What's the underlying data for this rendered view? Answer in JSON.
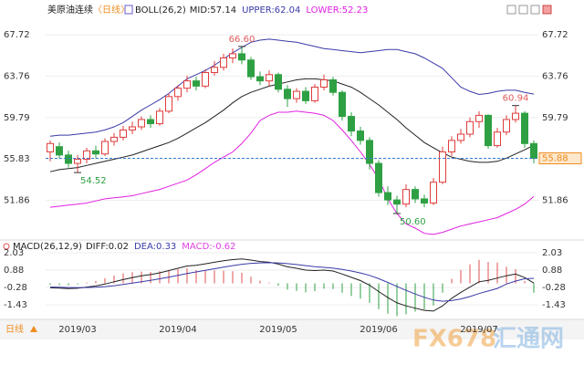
{
  "chart_data": [
    {
      "type": "candlestick",
      "title": "美原油连续",
      "period_label": "〈日线〉",
      "indicator": "BOLL(26,2)",
      "categories": [
        null,
        null,
        null,
        "2019/03",
        null,
        null,
        null,
        null,
        null,
        null,
        null,
        null,
        null,
        null,
        "2019/04",
        null,
        null,
        null,
        null,
        null,
        null,
        null,
        null,
        null,
        null,
        "2019/05",
        null,
        null,
        null,
        null,
        null,
        null,
        null,
        null,
        null,
        null,
        "2019/06",
        null,
        null,
        null,
        null,
        null,
        null,
        null,
        null,
        null,
        null,
        "2019/07",
        null,
        null,
        null,
        null,
        null,
        null
      ],
      "open": [
        56.5,
        57.0,
        56.2,
        55.4,
        55.8,
        56.6,
        56.3,
        57.5,
        57.9,
        58.6,
        58.9,
        59.6,
        59.2,
        60.4,
        61.8,
        62.6,
        63.3,
        62.8,
        64.1,
        64.6,
        65.5,
        65.9,
        65.3,
        63.7,
        63.3,
        63.9,
        62.5,
        61.6,
        62.3,
        61.4,
        62.7,
        63.4,
        62.2,
        59.9,
        58.5,
        57.6,
        55.4,
        52.6,
        51.9,
        51.5,
        52.9,
        52.0,
        51.6,
        53.6,
        56.5,
        57.6,
        58.2,
        59.4,
        60.0,
        57.1,
        58.4,
        59.6,
        60.2,
        57.3
      ],
      "high": [
        57.6,
        57.4,
        56.6,
        56.2,
        56.9,
        57.1,
        57.8,
        58.3,
        59.0,
        59.4,
        59.9,
        60.0,
        60.7,
        62.1,
        62.9,
        63.8,
        63.7,
        64.4,
        65.2,
        65.9,
        66.4,
        66.6,
        65.6,
        64.2,
        64.3,
        64.1,
        62.9,
        62.6,
        62.7,
        63.0,
        63.9,
        63.7,
        62.4,
        60.3,
        58.9,
        57.9,
        55.7,
        53.2,
        52.3,
        53.4,
        53.2,
        52.4,
        54.0,
        57.0,
        58.0,
        58.7,
        59.8,
        60.4,
        60.1,
        58.8,
        60.0,
        60.94,
        60.4,
        57.6
      ],
      "low": [
        55.6,
        55.9,
        55.0,
        54.52,
        55.4,
        55.9,
        56.1,
        57.1,
        57.6,
        58.2,
        58.6,
        58.8,
        59.0,
        60.2,
        61.4,
        62.2,
        62.4,
        62.6,
        63.8,
        64.3,
        65.0,
        64.9,
        63.4,
        62.9,
        62.8,
        62.2,
        60.8,
        61.2,
        61.1,
        61.2,
        62.4,
        61.9,
        59.5,
        58.0,
        57.2,
        54.8,
        52.2,
        51.4,
        50.6,
        51.2,
        51.6,
        51.2,
        51.4,
        53.4,
        56.1,
        57.3,
        57.9,
        58.8,
        56.8,
        56.9,
        58.1,
        59.3,
        56.9,
        55.4
      ],
      "close": [
        57.3,
        56.2,
        55.4,
        55.8,
        56.6,
        56.3,
        57.5,
        57.9,
        58.6,
        58.9,
        59.6,
        59.2,
        60.4,
        61.8,
        62.6,
        63.3,
        62.8,
        64.1,
        64.6,
        65.5,
        65.9,
        65.3,
        63.7,
        63.3,
        63.9,
        62.5,
        61.6,
        62.3,
        61.4,
        62.7,
        63.4,
        62.2,
        59.9,
        58.5,
        57.6,
        55.4,
        52.6,
        51.9,
        51.5,
        52.9,
        52.0,
        51.6,
        53.6,
        56.5,
        57.6,
        58.2,
        59.4,
        60.0,
        57.1,
        58.4,
        59.6,
        60.2,
        57.3,
        55.88
      ],
      "high_value_labels": [
        null,
        null,
        null,
        null,
        null,
        null,
        null,
        null,
        null,
        null,
        null,
        null,
        null,
        null,
        null,
        null,
        null,
        null,
        null,
        null,
        null,
        "66.60",
        null,
        null,
        null,
        null,
        null,
        null,
        null,
        null,
        null,
        null,
        null,
        null,
        null,
        null,
        null,
        null,
        null,
        null,
        null,
        null,
        null,
        null,
        null,
        null,
        null,
        null,
        null,
        null,
        null,
        "60.94",
        null,
        null
      ],
      "low_value_labels": [
        null,
        null,
        null,
        "54.52",
        null,
        null,
        null,
        null,
        null,
        null,
        null,
        null,
        null,
        null,
        null,
        null,
        null,
        null,
        null,
        null,
        null,
        null,
        null,
        null,
        null,
        null,
        null,
        null,
        null,
        null,
        null,
        null,
        null,
        null,
        null,
        null,
        null,
        null,
        "50.60",
        null,
        null,
        null,
        null,
        null,
        null,
        null,
        null,
        null,
        null,
        null,
        null,
        null,
        null,
        null
      ],
      "up_color": "#e03c3c",
      "down_color": "#2ea043",
      "label_high_color": "#e05a5a",
      "label_low_color": "#2ea043",
      "series": [
        {
          "name": "MID:57.14",
          "color": "#222222",
          "values": [
            54.6,
            54.8,
            54.9,
            55.0,
            55.2,
            55.4,
            55.6,
            55.8,
            56.0,
            56.2,
            56.5,
            56.8,
            57.1,
            57.4,
            57.8,
            58.3,
            58.8,
            59.3,
            59.9,
            60.5,
            61.2,
            61.8,
            62.2,
            62.5,
            62.8,
            63.0,
            63.2,
            63.4,
            63.5,
            63.5,
            63.4,
            63.3,
            63.0,
            62.7,
            62.2,
            61.6,
            61.0,
            60.3,
            59.6,
            58.8,
            58.1,
            57.4,
            56.9,
            56.4,
            56.0,
            55.8,
            55.6,
            55.5,
            55.5,
            55.6,
            55.9,
            56.3,
            56.7,
            57.14
          ]
        },
        {
          "name": "UPPER:62.04",
          "color": "#3a3aa8",
          "values": [
            58.0,
            58.1,
            58.1,
            58.2,
            58.3,
            58.4,
            58.6,
            58.9,
            59.3,
            59.9,
            60.5,
            61.0,
            61.5,
            62.1,
            62.8,
            63.5,
            63.9,
            64.3,
            64.8,
            65.4,
            66.0,
            66.5,
            67.0,
            67.2,
            67.3,
            67.2,
            67.1,
            67.0,
            66.8,
            66.6,
            66.4,
            66.3,
            66.2,
            66.1,
            66.0,
            66.1,
            66.2,
            66.3,
            66.3,
            66.1,
            65.9,
            65.5,
            65.0,
            64.5,
            63.6,
            62.7,
            62.3,
            62.0,
            62.1,
            62.3,
            62.4,
            62.4,
            62.2,
            62.04
          ]
        },
        {
          "name": "LOWER:52.23",
          "color": "#e020e0",
          "values": [
            51.2,
            51.3,
            51.4,
            51.5,
            51.6,
            51.8,
            52.0,
            52.1,
            52.2,
            52.3,
            52.5,
            52.7,
            52.9,
            53.2,
            53.5,
            53.8,
            54.3,
            54.9,
            55.5,
            56.0,
            56.5,
            57.3,
            58.3,
            59.5,
            60.0,
            60.3,
            60.3,
            60.4,
            60.3,
            60.2,
            60.0,
            59.5,
            58.6,
            57.6,
            56.5,
            55.3,
            53.9,
            52.0,
            50.6,
            49.6,
            49.2,
            48.7,
            48.6,
            48.8,
            49.1,
            49.4,
            49.6,
            49.8,
            50.0,
            50.2,
            50.6,
            51.0,
            51.5,
            52.23
          ]
        }
      ],
      "last_price": 55.88,
      "last_price_color": "#f08c1e",
      "last_line_color": "#3a7bd5",
      "ylim": [
        48.15,
        68.6
      ],
      "yticks": [
        51.86,
        55.83,
        59.79,
        63.76,
        67.72
      ],
      "grid": true
    },
    {
      "type": "macd",
      "indicator": "MACD(26,12,9)",
      "series": [
        {
          "name": "DIFF:0.02",
          "color": "#222222",
          "values": [
            -0.3,
            -0.32,
            -0.35,
            -0.33,
            -0.25,
            -0.18,
            -0.05,
            0.1,
            0.25,
            0.38,
            0.5,
            0.58,
            0.7,
            0.85,
            1.0,
            1.15,
            1.2,
            1.3,
            1.4,
            1.5,
            1.58,
            1.62,
            1.55,
            1.45,
            1.4,
            1.28,
            1.1,
            1.0,
            0.88,
            0.85,
            0.88,
            0.82,
            0.62,
            0.4,
            0.18,
            -0.12,
            -0.55,
            -0.95,
            -1.3,
            -1.5,
            -1.65,
            -1.8,
            -1.85,
            -1.5,
            -1.0,
            -0.6,
            -0.25,
            0.1,
            0.2,
            0.35,
            0.5,
            0.62,
            0.38,
            0.02
          ]
        },
        {
          "name": "DEA:0.33",
          "color": "#3a3aa8",
          "values": [
            -0.25,
            -0.26,
            -0.28,
            -0.29,
            -0.28,
            -0.26,
            -0.22,
            -0.16,
            -0.08,
            0.01,
            0.11,
            0.2,
            0.3,
            0.41,
            0.53,
            0.65,
            0.76,
            0.87,
            0.97,
            1.08,
            1.18,
            1.27,
            1.33,
            1.36,
            1.37,
            1.36,
            1.31,
            1.25,
            1.18,
            1.11,
            1.06,
            1.01,
            0.93,
            0.82,
            0.69,
            0.53,
            0.31,
            0.06,
            -0.21,
            -0.47,
            -0.71,
            -0.93,
            -1.11,
            -1.19,
            -1.15,
            -1.04,
            -0.88,
            -0.68,
            -0.51,
            -0.34,
            -0.05,
            0.15,
            0.3,
            0.33
          ]
        },
        {
          "name": "MACD:-0.62",
          "color": "#e040e0",
          "up_color": "#e05050",
          "down_color": "#2ea043",
          "values": [
            -0.1,
            -0.12,
            -0.14,
            -0.08,
            0.06,
            0.16,
            0.34,
            0.52,
            0.66,
            0.74,
            0.78,
            0.76,
            0.8,
            0.88,
            0.94,
            1.0,
            0.88,
            0.86,
            0.86,
            0.84,
            0.8,
            0.7,
            0.44,
            0.18,
            0.06,
            -0.16,
            -0.42,
            -0.5,
            -0.6,
            -0.52,
            -0.36,
            -0.38,
            -0.62,
            -0.84,
            -1.02,
            -1.3,
            -1.72,
            -2.02,
            -2.18,
            -2.06,
            -1.88,
            -1.74,
            -1.48,
            -0.62,
            0.3,
            0.88,
            1.26,
            1.56,
            1.42,
            1.38,
            1.1,
            0.94,
            0.16,
            -0.62
          ]
        }
      ],
      "ylim": [
        -2.4,
        2.58
      ],
      "yticks": [
        2.03,
        0.88,
        -0.28,
        -1.43
      ],
      "grid": true
    }
  ],
  "toolbar": {
    "period_button": "日线"
  },
  "watermark": {
    "brand": "FX678",
    "name": "汇通网"
  }
}
